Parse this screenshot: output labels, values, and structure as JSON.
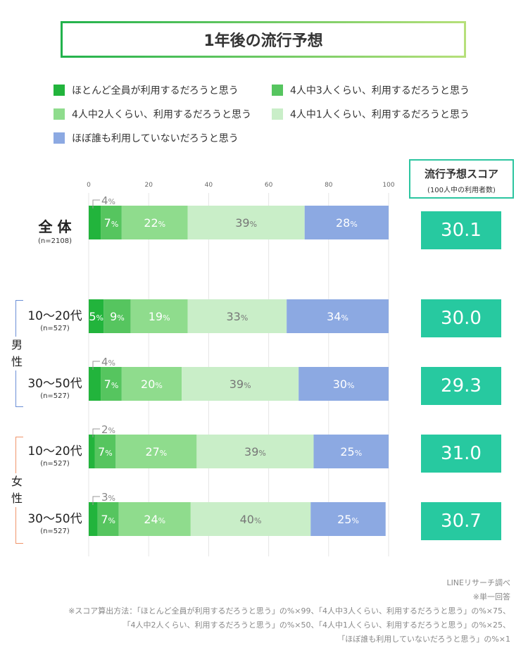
{
  "title": "1年後の流行予想",
  "legend": [
    {
      "label": "ほとんど全員が利用するだろうと思う",
      "color": "#22b43c"
    },
    {
      "label": "4人中3人くらい、利用するだろうと思う",
      "color": "#56c55f"
    },
    {
      "label": "4人中2人くらい、利用するだろうと思う",
      "color": "#8fdc8d"
    },
    {
      "label": "4人中1人くらい、利用するだろうと思う",
      "color": "#c9eec8"
    },
    {
      "label": "ほぼ誰も利用していないだろうと思う",
      "color": "#8ca9e2"
    }
  ],
  "score_header": {
    "title": "流行予想スコア",
    "subtitle": "(100人中の利用者数)"
  },
  "groups": [
    {
      "label_top": "男",
      "label_bottom": "性",
      "color": "#6b8fd6"
    },
    {
      "label_top": "女",
      "label_bottom": "性",
      "color": "#f0956b"
    }
  ],
  "rows": [
    {
      "label": "全 体",
      "n": "(n=2108)",
      "score": "30.1"
    },
    {
      "label": "10〜20代",
      "n": "(n=527)",
      "score": "30.0"
    },
    {
      "label": "30〜50代",
      "n": "(n=527)",
      "score": "29.3"
    },
    {
      "label": "10〜20代",
      "n": "(n=527)",
      "score": "31.0"
    },
    {
      "label": "30〜50代",
      "n": "(n=527)",
      "score": "30.7"
    }
  ],
  "chart_data": {
    "type": "bar",
    "orientation": "horizontal-stacked",
    "xlim": [
      0,
      100
    ],
    "xticks": [
      0,
      20,
      40,
      60,
      80,
      100
    ],
    "categories": [
      "全体",
      "男性 10〜20代",
      "男性 30〜50代",
      "女性 10〜20代",
      "女性 30〜50代"
    ],
    "series": [
      {
        "name": "ほとんど全員が利用するだろうと思う",
        "values": [
          4,
          5,
          4,
          2,
          3
        ]
      },
      {
        "name": "4人中3人くらい、利用するだろうと思う",
        "values": [
          7,
          9,
          7,
          7,
          7
        ]
      },
      {
        "name": "4人中2人くらい、利用するだろうと思う",
        "values": [
          22,
          19,
          20,
          27,
          24
        ]
      },
      {
        "name": "4人中1人くらい、利用するだろうと思う",
        "values": [
          39,
          33,
          39,
          39,
          40
        ]
      },
      {
        "name": "ほぼ誰も利用していないだろうと思う",
        "values": [
          28,
          34,
          30,
          25,
          25
        ]
      }
    ],
    "unit": "%"
  },
  "notes": [
    "LINEリサーチ調べ",
    "※単一回答",
    "※スコア算出方法：「ほとんど全員が利用するだろうと思う」の%×99、「4人中3人くらい、利用するだろうと思う」の%×75、",
    "「4人中2人くらい、利用するだろうと思う」の%×50、「4人中1人くらい、利用するだろうと思う」の%×25、",
    "「ほぼ誰も利用していないだろうと思う」の%×1"
  ]
}
